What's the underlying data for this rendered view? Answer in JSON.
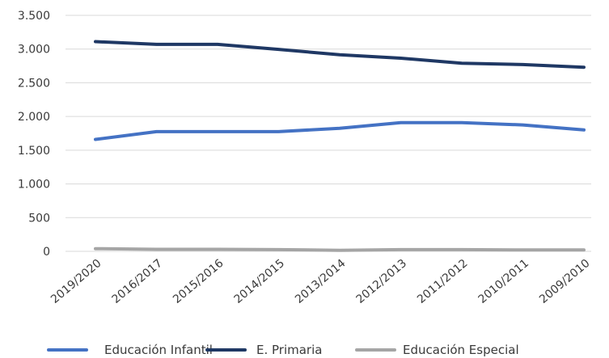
{
  "chart_data": {
    "type": "line",
    "title": "",
    "xlabel": "",
    "ylabel": "",
    "categories": [
      "2019/2020",
      "2016/2017",
      "2015/2016",
      "2014/2015",
      "2013/2014",
      "2012/2013",
      "2011/2012",
      "2010/2011",
      "2009/2010"
    ],
    "ylim": [
      0,
      3500
    ],
    "yticks": [
      0,
      500,
      1000,
      1500,
      2000,
      2500,
      3000,
      3500
    ],
    "ytick_labels": [
      "0",
      "500",
      "1.000",
      "1.500",
      "2.000",
      "2.500",
      "3.000",
      "3.500"
    ],
    "grid": true,
    "legend_position": "bottom",
    "series": [
      {
        "name": "Educación Infantil",
        "color": "#4472c4",
        "values": [
          1660,
          1775,
          1775,
          1775,
          1825,
          1910,
          1910,
          1875,
          1800
        ]
      },
      {
        "name": "E. Primaria",
        "color": "#1f3864",
        "values": [
          3110,
          3070,
          3070,
          2995,
          2915,
          2865,
          2790,
          2770,
          2730
        ]
      },
      {
        "name": "Educación Especial",
        "color": "#a5a5a5",
        "values": [
          40,
          30,
          30,
          25,
          15,
          25,
          25,
          20,
          20
        ]
      }
    ]
  }
}
